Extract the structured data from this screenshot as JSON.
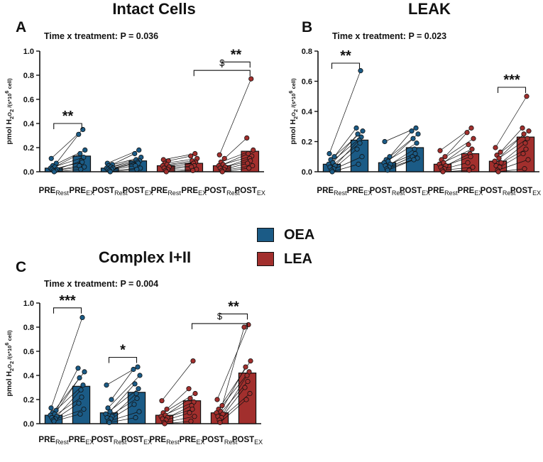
{
  "colors": {
    "oea": "#1b5b86",
    "lea": "#a22f2d",
    "axis": "#111111"
  },
  "legend": [
    {
      "label": "OEA",
      "color": "#1b5b86"
    },
    {
      "label": "LEA",
      "color": "#a22f2d"
    }
  ],
  "chart_data": [
    {
      "type": "bar",
      "panel_letter": "A",
      "title": "Intact Cells",
      "subtitle": "Time x treatment:  P = 0.036",
      "ylabel": "pmol H2O2 /(s*10^6 cell)",
      "ylim": [
        0,
        1.0
      ],
      "yticks": [
        0.0,
        0.2,
        0.4,
        0.6,
        0.8,
        1.0
      ],
      "yticklabels": [
        "0.0",
        "0.2",
        "0.4",
        "0.6",
        "0.8",
        "1.0"
      ],
      "categories": [
        {
          "base": "PRE",
          "sub": "Rest"
        },
        {
          "base": "PRE",
          "sub": "EX"
        },
        {
          "base": "POST",
          "sub": "Rest"
        },
        {
          "base": "POST",
          "sub": "EX"
        },
        {
          "base": "PRE",
          "sub": "Rest"
        },
        {
          "base": "PRE",
          "sub": "EX"
        },
        {
          "base": "POST",
          "sub": "Rest"
        },
        {
          "base": "POST",
          "sub": "EX"
        }
      ],
      "groups": [
        "OEA",
        "OEA",
        "OEA",
        "OEA",
        "LEA",
        "LEA",
        "LEA",
        "LEA"
      ],
      "values": [
        0.03,
        0.13,
        0.03,
        0.09,
        0.05,
        0.07,
        0.05,
        0.17
      ],
      "points": [
        [
          0.11,
          0.07,
          0.05,
          0.04,
          0.03,
          0.02,
          0.02,
          0.01,
          0.01,
          0.0
        ],
        [
          0.35,
          0.31,
          0.18,
          0.15,
          0.12,
          0.09,
          0.08,
          0.05,
          0.04,
          0.02
        ],
        [
          0.07,
          0.06,
          0.05,
          0.04,
          0.03,
          0.03,
          0.02,
          0.02,
          0.01,
          0.0
        ],
        [
          0.18,
          0.15,
          0.12,
          0.1,
          0.09,
          0.08,
          0.07,
          0.05,
          0.03,
          0.02
        ],
        [
          0.1,
          0.09,
          0.07,
          0.06,
          0.05,
          0.04,
          0.03,
          0.02,
          0.01,
          0.0
        ],
        [
          0.15,
          0.13,
          0.11,
          0.09,
          0.08,
          0.07,
          0.05,
          0.04,
          0.02,
          0.01
        ],
        [
          0.14,
          0.11,
          0.08,
          0.06,
          0.05,
          0.04,
          0.03,
          0.02,
          0.01,
          0.0
        ],
        [
          0.77,
          0.28,
          0.18,
          0.15,
          0.13,
          0.11,
          0.09,
          0.07,
          0.05,
          0.03
        ]
      ],
      "brackets": [
        {
          "from": 0,
          "to": 1,
          "level": 0.4,
          "label": "**"
        },
        {
          "from": 6,
          "to": 7,
          "level": 0.91,
          "label": "**"
        },
        {
          "from": 5,
          "to": 7,
          "level": 0.84,
          "label": "$"
        }
      ]
    },
    {
      "type": "bar",
      "panel_letter": "B",
      "title": "LEAK",
      "subtitle": "Time x treatment:  P = 0.023",
      "ylabel": "pmol H2O2 /(s*10^6 cell)",
      "ylim": [
        0,
        0.8
      ],
      "yticks": [
        0.0,
        0.2,
        0.4,
        0.6,
        0.8
      ],
      "yticklabels": [
        "0.0",
        "0.2",
        "0.4",
        "0.6",
        "0.8"
      ],
      "categories": [
        {
          "base": "PRE",
          "sub": "Rest"
        },
        {
          "base": "PRE",
          "sub": "EX"
        },
        {
          "base": "POST",
          "sub": "Rest"
        },
        {
          "base": "POST",
          "sub": "EX"
        },
        {
          "base": "PRE",
          "sub": "Rest"
        },
        {
          "base": "PRE",
          "sub": "EX"
        },
        {
          "base": "POST",
          "sub": "Rest"
        },
        {
          "base": "POST",
          "sub": "EX"
        }
      ],
      "groups": [
        "OEA",
        "OEA",
        "OEA",
        "OEA",
        "LEA",
        "LEA",
        "LEA",
        "LEA"
      ],
      "values": [
        0.05,
        0.21,
        0.06,
        0.16,
        0.05,
        0.12,
        0.07,
        0.23
      ],
      "points": [
        [
          0.12,
          0.1,
          0.08,
          0.06,
          0.05,
          0.04,
          0.03,
          0.02,
          0.01,
          0.0
        ],
        [
          0.67,
          0.29,
          0.27,
          0.25,
          0.23,
          0.21,
          0.19,
          0.15,
          0.1,
          0.05
        ],
        [
          0.2,
          0.1,
          0.08,
          0.07,
          0.06,
          0.05,
          0.04,
          0.03,
          0.02,
          0.01
        ],
        [
          0.29,
          0.27,
          0.25,
          0.22,
          0.19,
          0.15,
          0.12,
          0.1,
          0.09,
          0.08
        ],
        [
          0.14,
          0.1,
          0.08,
          0.06,
          0.05,
          0.04,
          0.03,
          0.02,
          0.01,
          0.0
        ],
        [
          0.29,
          0.26,
          0.22,
          0.18,
          0.15,
          0.12,
          0.1,
          0.06,
          0.03,
          0.01
        ],
        [
          0.16,
          0.13,
          0.11,
          0.09,
          0.07,
          0.06,
          0.04,
          0.03,
          0.01,
          0.0
        ],
        [
          0.5,
          0.29,
          0.27,
          0.25,
          0.22,
          0.19,
          0.15,
          0.12,
          0.08,
          0.02
        ]
      ],
      "brackets": [
        {
          "from": 0,
          "to": 1,
          "level": 0.72,
          "label": "**"
        },
        {
          "from": 6,
          "to": 7,
          "level": 0.56,
          "label": "***"
        }
      ]
    },
    {
      "type": "bar",
      "panel_letter": "C",
      "title": "Complex I+II",
      "subtitle": "Time x treatment:  P = 0.004",
      "ylabel": "pmol H2O2 /(s*10^6 cell)",
      "ylim": [
        0,
        1.0
      ],
      "yticks": [
        0.0,
        0.2,
        0.4,
        0.6,
        0.8,
        1.0
      ],
      "yticklabels": [
        "0.0",
        "0.2",
        "0.4",
        "0.6",
        "0.8",
        "1.0"
      ],
      "categories": [
        {
          "base": "PRE",
          "sub": "Rest"
        },
        {
          "base": "PRE",
          "sub": "EX"
        },
        {
          "base": "POST",
          "sub": "Rest"
        },
        {
          "base": "POST",
          "sub": "EX"
        },
        {
          "base": "PRE",
          "sub": "Rest"
        },
        {
          "base": "PRE",
          "sub": "EX"
        },
        {
          "base": "POST",
          "sub": "Rest"
        },
        {
          "base": "POST",
          "sub": "EX"
        }
      ],
      "groups": [
        "OEA",
        "OEA",
        "OEA",
        "OEA",
        "LEA",
        "LEA",
        "LEA",
        "LEA"
      ],
      "values": [
        0.07,
        0.31,
        0.09,
        0.26,
        0.07,
        0.19,
        0.09,
        0.42
      ],
      "points": [
        [
          0.13,
          0.11,
          0.09,
          0.08,
          0.07,
          0.06,
          0.05,
          0.04,
          0.03,
          0.02
        ],
        [
          0.88,
          0.46,
          0.43,
          0.38,
          0.32,
          0.28,
          0.22,
          0.17,
          0.12,
          0.08
        ],
        [
          0.32,
          0.2,
          0.13,
          0.1,
          0.08,
          0.06,
          0.05,
          0.04,
          0.02,
          0.01
        ],
        [
          0.47,
          0.45,
          0.4,
          0.33,
          0.29,
          0.25,
          0.21,
          0.16,
          0.1,
          0.05
        ],
        [
          0.19,
          0.12,
          0.09,
          0.07,
          0.06,
          0.05,
          0.04,
          0.03,
          0.01,
          0.0
        ],
        [
          0.52,
          0.29,
          0.25,
          0.21,
          0.18,
          0.15,
          0.12,
          0.09,
          0.06,
          0.02
        ],
        [
          0.2,
          0.15,
          0.12,
          0.1,
          0.09,
          0.08,
          0.06,
          0.05,
          0.03,
          0.01
        ],
        [
          0.82,
          0.8,
          0.52,
          0.47,
          0.43,
          0.4,
          0.35,
          0.3,
          0.25,
          0.2
        ]
      ],
      "brackets": [
        {
          "from": 0,
          "to": 1,
          "level": 0.96,
          "label": "***"
        },
        {
          "from": 2,
          "to": 3,
          "level": 0.55,
          "label": "*"
        },
        {
          "from": 6,
          "to": 7,
          "level": 0.91,
          "label": "**"
        },
        {
          "from": 5,
          "to": 7,
          "level": 0.83,
          "label": "$"
        }
      ]
    }
  ]
}
